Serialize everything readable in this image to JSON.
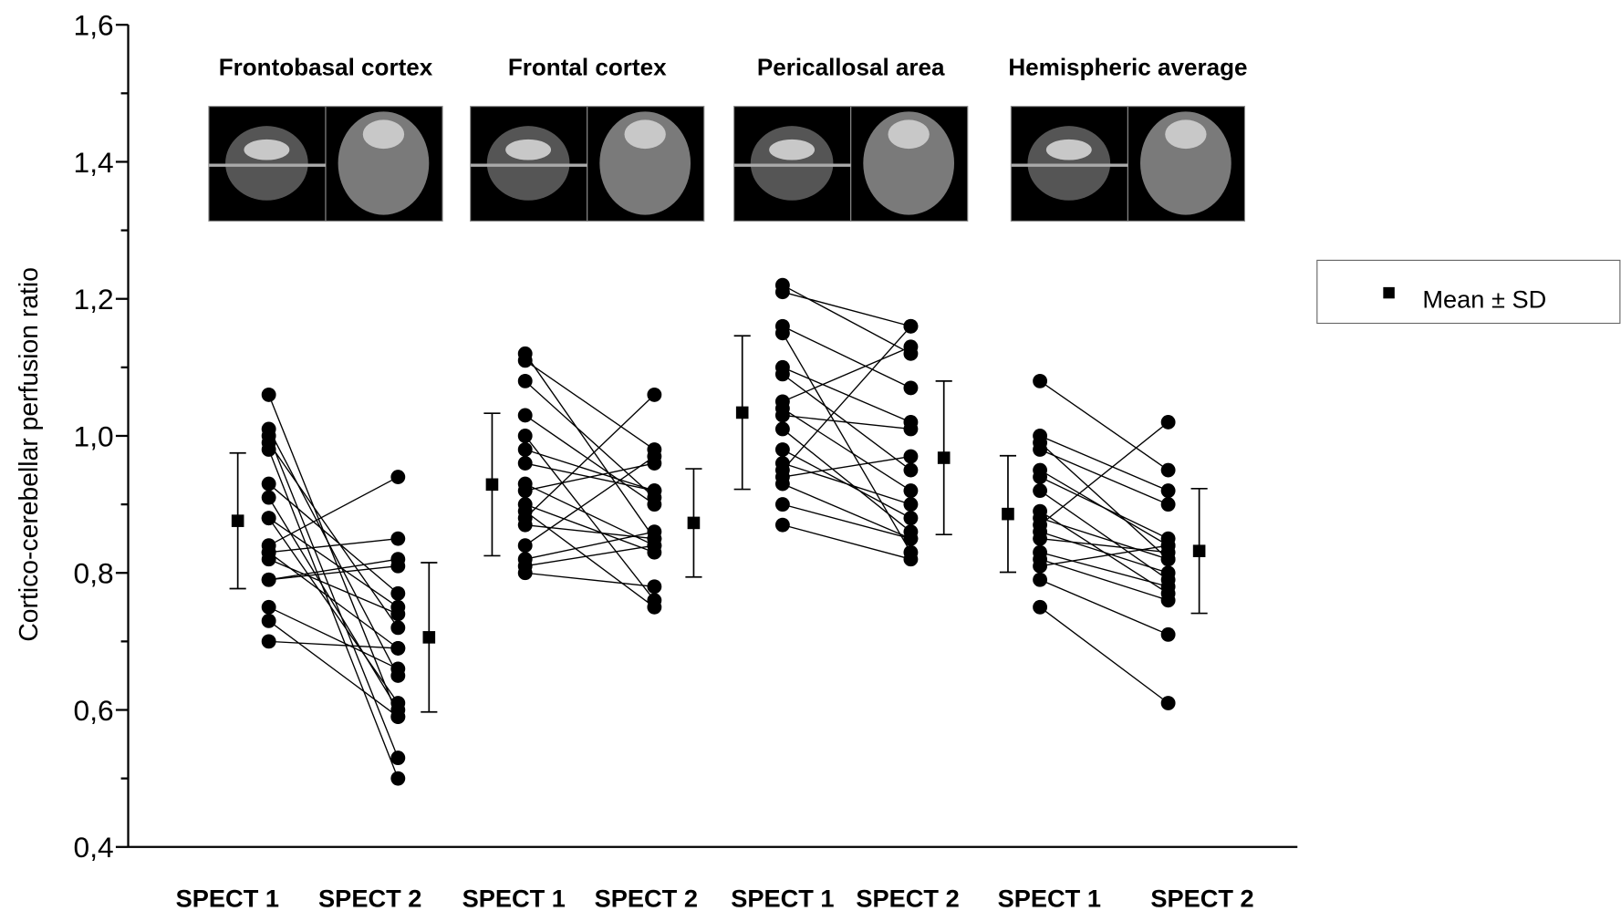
{
  "chart_data": {
    "type": "paired-dot",
    "ylabel": "Cortico-cerebellar perfusion ratio",
    "ylim": [
      0.4,
      1.6
    ],
    "yticks": [
      {
        "value": 0.4,
        "label": "0,4"
      },
      {
        "value": 0.6,
        "label": "0,6"
      },
      {
        "value": 0.8,
        "label": "0,8"
      },
      {
        "value": 1.0,
        "label": "1,0"
      },
      {
        "value": 1.2,
        "label": "1,2"
      },
      {
        "value": 1.4,
        "label": "1,4"
      },
      {
        "value": 1.6,
        "label": "1,6"
      }
    ],
    "yminor": [
      0.5,
      0.7,
      0.9,
      1.1,
      1.3,
      1.5
    ],
    "color": "#000000",
    "legend": "Mean ± SD",
    "groups": [
      {
        "title": "Frontobasal cortex",
        "categories": [
          "SPECT 1",
          "SPECT 2"
        ],
        "spect1": [
          1.06,
          1.01,
          1.0,
          0.99,
          0.98,
          0.93,
          0.91,
          0.88,
          0.88,
          0.84,
          0.83,
          0.83,
          0.82,
          0.79,
          0.79,
          0.75,
          0.73,
          0.7
        ],
        "spect2": [
          0.59,
          0.65,
          0.53,
          0.72,
          0.5,
          0.77,
          0.6,
          0.61,
          0.75,
          0.94,
          0.69,
          0.85,
          0.74,
          0.82,
          0.81,
          0.66,
          0.59,
          0.69
        ],
        "mean": [
          0.876,
          0.706
        ],
        "sd": [
          0.099,
          0.109
        ]
      },
      {
        "title": "Frontal cortex",
        "categories": [
          "SPECT 1",
          "SPECT 2"
        ],
        "spect1": [
          1.12,
          1.11,
          1.08,
          1.03,
          1.0,
          0.98,
          0.96,
          0.93,
          0.92,
          0.9,
          0.89,
          0.88,
          0.87,
          0.84,
          0.82,
          0.81,
          0.8
        ],
        "spect2": [
          0.85,
          0.98,
          0.91,
          0.9,
          0.76,
          0.92,
          0.92,
          0.84,
          0.96,
          0.83,
          0.75,
          1.06,
          0.85,
          0.97,
          0.86,
          0.84,
          0.78
        ],
        "mean": [
          0.929,
          0.873
        ],
        "sd": [
          0.104,
          0.079
        ]
      },
      {
        "title": "Pericallosal area",
        "categories": [
          "SPECT 1",
          "SPECT 2"
        ],
        "spect1": [
          1.22,
          1.21,
          1.16,
          1.15,
          1.1,
          1.09,
          1.05,
          1.04,
          1.03,
          1.01,
          0.98,
          0.96,
          0.95,
          0.94,
          0.93,
          0.9,
          0.87
        ],
        "spect2": [
          1.12,
          1.16,
          1.07,
          0.83,
          1.02,
          0.95,
          1.13,
          0.92,
          1.01,
          0.86,
          0.88,
          0.9,
          1.16,
          0.97,
          0.85,
          0.85,
          0.82
        ],
        "mean": [
          1.034,
          0.968
        ],
        "sd": [
          0.112,
          0.112
        ]
      },
      {
        "title": "Hemispheric average",
        "categories": [
          "SPECT 1",
          "SPECT 2"
        ],
        "spect1": [
          1.08,
          1.0,
          0.99,
          0.98,
          0.95,
          0.94,
          0.92,
          0.89,
          0.88,
          0.87,
          0.86,
          0.85,
          0.83,
          0.82,
          0.81,
          0.79,
          0.75
        ],
        "spect2": [
          0.95,
          0.92,
          0.82,
          0.9,
          0.84,
          0.85,
          0.79,
          0.77,
          0.82,
          1.02,
          0.8,
          0.83,
          0.78,
          0.76,
          0.84,
          0.71,
          0.61
        ],
        "mean": [
          0.886,
          0.832
        ],
        "sd": [
          0.085,
          0.091
        ]
      }
    ]
  }
}
